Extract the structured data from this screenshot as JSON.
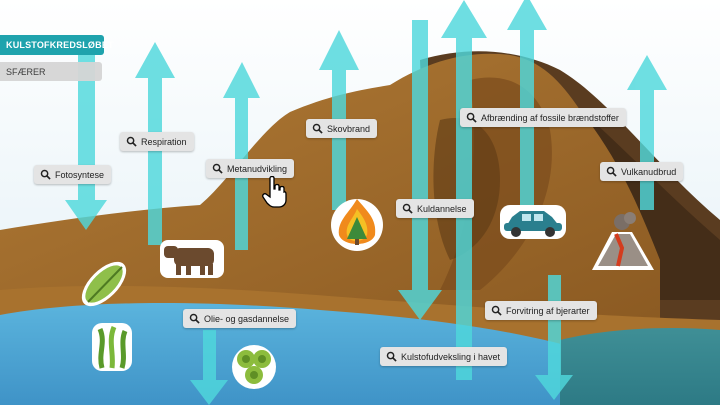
{
  "nav": {
    "title": "KULSTOFKREDSLØBET",
    "subtitle": "SFÆRER"
  },
  "labels": {
    "fotosyntese": "Fotosyntese",
    "respiration": "Respiration",
    "metanudvikling": "Metanudvikling",
    "skovbrand": "Skovbrand",
    "afbraending": "Afbrænding af fossile brændstoffer",
    "vulkanudbrud": "Vulkanudbrud",
    "kuldannelse": "Kuldannelse",
    "olie": "Olie- og gasdannelse",
    "forvitring": "Forvitring af bjerarter",
    "kulstofudveksling": "Kulstofudveksling i havet"
  },
  "icons": [
    "search-icon",
    "leaf-icon",
    "cow-icon",
    "forest-fire-icon",
    "car-icon",
    "volcano-icon",
    "seaweed-icon",
    "algae-icon",
    "hand-cursor-icon"
  ],
  "colors": {
    "accent": "#1fa3ad",
    "arrow": "#4fd8dc",
    "water": "#4aa6d6",
    "earth": "#a8722e"
  }
}
